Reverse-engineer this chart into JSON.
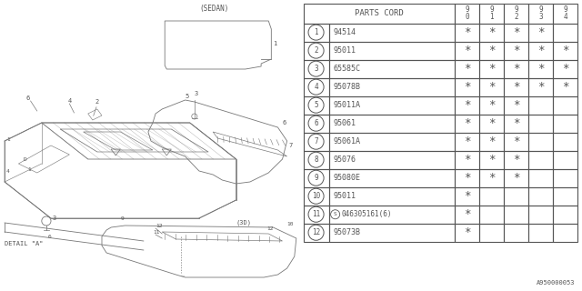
{
  "bg_color": "#ffffff",
  "line_color": "#888888",
  "watermark": "A950000053",
  "table": {
    "header_col": "PARTS CORD",
    "year_cols": [
      "9\n0",
      "9\n1",
      "9\n2",
      "9\n3",
      "9\n4"
    ],
    "rows": [
      {
        "num": "1",
        "part": "94514",
        "years": [
          true,
          true,
          true,
          true,
          false
        ]
      },
      {
        "num": "2",
        "part": "95011",
        "years": [
          true,
          true,
          true,
          true,
          true
        ]
      },
      {
        "num": "3",
        "part": "65585C",
        "years": [
          true,
          true,
          true,
          true,
          true
        ]
      },
      {
        "num": "4",
        "part": "95078B",
        "years": [
          true,
          true,
          true,
          true,
          true
        ]
      },
      {
        "num": "5",
        "part": "95011A",
        "years": [
          true,
          true,
          true,
          false,
          false
        ]
      },
      {
        "num": "6",
        "part": "95061",
        "years": [
          true,
          true,
          true,
          false,
          false
        ]
      },
      {
        "num": "7",
        "part": "95061A",
        "years": [
          true,
          true,
          true,
          false,
          false
        ]
      },
      {
        "num": "8",
        "part": "95076",
        "years": [
          true,
          true,
          true,
          false,
          false
        ]
      },
      {
        "num": "9",
        "part": "95080E",
        "years": [
          true,
          true,
          true,
          false,
          false
        ]
      },
      {
        "num": "10",
        "part": "95011",
        "years": [
          true,
          false,
          false,
          false,
          false
        ]
      },
      {
        "num": "11",
        "part": "S046305161(6)",
        "years": [
          true,
          false,
          false,
          false,
          false
        ]
      },
      {
        "num": "12",
        "part": "95073B",
        "years": [
          true,
          false,
          false,
          false,
          false
        ]
      }
    ]
  },
  "diagram": {
    "sedan_label": "(SEDAN)",
    "detail_label": "DETAIL \"A\"",
    "label_3d": "(3D)"
  }
}
